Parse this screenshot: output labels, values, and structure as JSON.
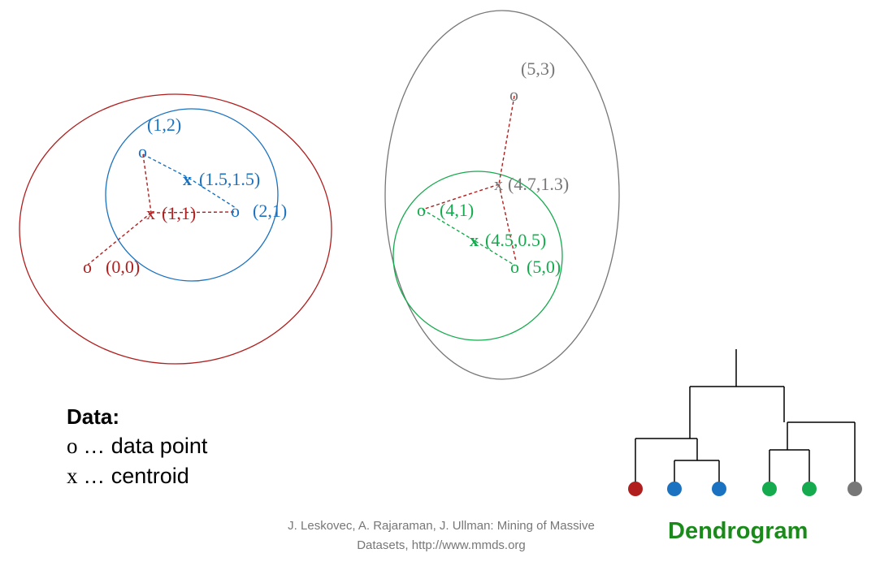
{
  "colors": {
    "red": "#b01e1e",
    "blue": "#1a72c0",
    "green": "#16aa4e",
    "gray": "#777777",
    "dendro_green": "#1a8a1a"
  },
  "diagram": {
    "points": {
      "p00": {
        "marker": "o",
        "label": "(0,0)"
      },
      "p12": {
        "marker": "o",
        "label": "(1,2)"
      },
      "p21": {
        "marker": "o",
        "label": "(2,1)"
      },
      "p41": {
        "marker": "o",
        "label": "(4,1)"
      },
      "p50": {
        "marker": "o",
        "label": "(5,0)"
      },
      "p53": {
        "marker": "o",
        "label": "(5,3)"
      }
    },
    "centroids": {
      "c11": {
        "marker": "x",
        "label": "(1,1)"
      },
      "c1515": {
        "marker": "x",
        "label": "(1.5,1.5)"
      },
      "c4505": {
        "marker": "x",
        "label": "(4.5,0.5)"
      },
      "c4713": {
        "marker": "x",
        "label": "(4.7,1.3)"
      }
    }
  },
  "legend": {
    "title": "Data:",
    "data_point_symbol": "o",
    "data_point_text": "… data point",
    "centroid_symbol": "x",
    "centroid_text": "… centroid"
  },
  "dendrogram": {
    "label": "Dendrogram"
  },
  "citation": {
    "line1": "J. Leskovec, A. Rajaraman, J. Ullman: Mining of Massive",
    "line2": "Datasets, http://www.mmds.org"
  }
}
